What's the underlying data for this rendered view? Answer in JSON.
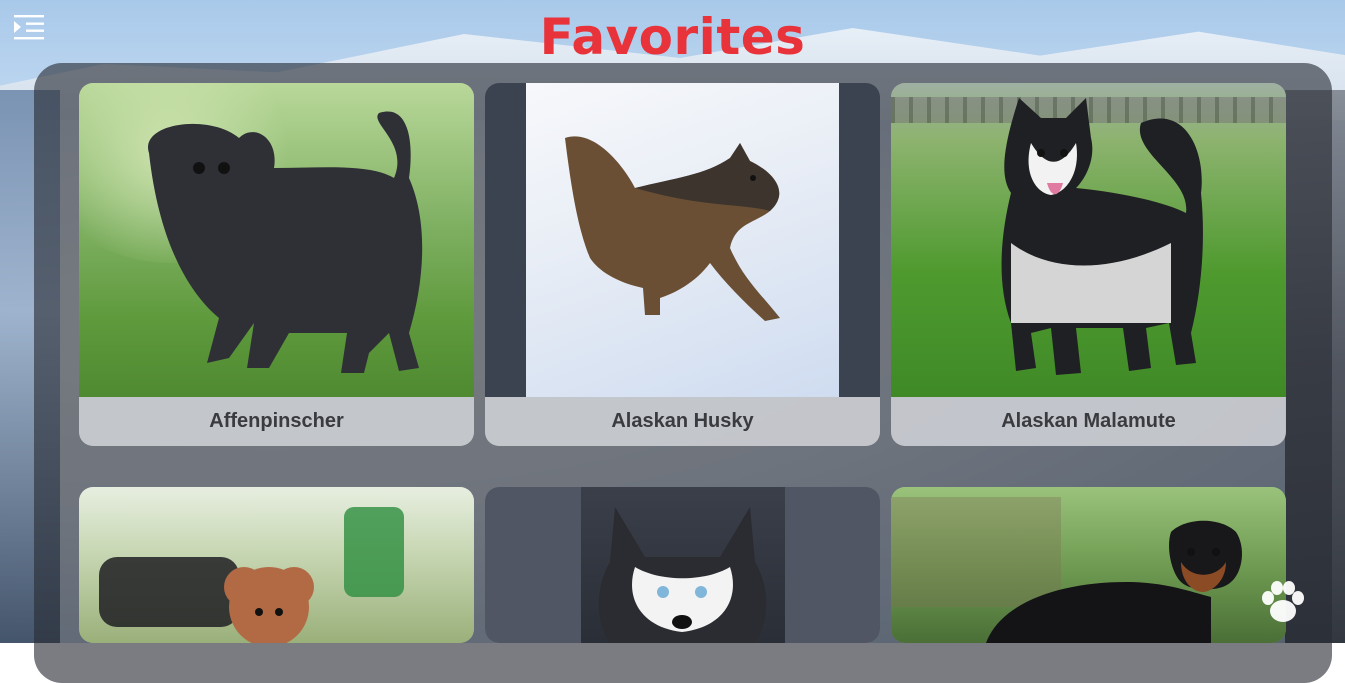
{
  "header": {
    "title": "Favorites",
    "menu_icon": "menu-indent-icon"
  },
  "cards": [
    {
      "label": "Affenpinscher"
    },
    {
      "label": "Alaskan Husky"
    },
    {
      "label": "Alaskan Malamute"
    },
    {
      "label": ""
    },
    {
      "label": ""
    },
    {
      "label": ""
    }
  ],
  "fab": {
    "icon": "paw-icon"
  },
  "colors": {
    "title": "#e8333a",
    "panel": "rgba(40,44,52,0.62)",
    "caption_bg": "#cdcfd4",
    "caption_text": "#3a3b3f"
  }
}
